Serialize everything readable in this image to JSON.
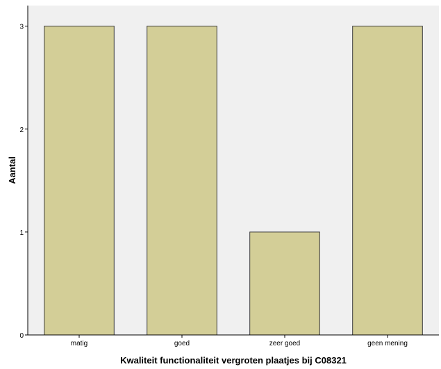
{
  "chart_data": {
    "type": "bar",
    "title": "",
    "xlabel": "Kwaliteit functionaliteit vergroten plaatjes bij C08321",
    "ylabel": "Aantal",
    "categories": [
      "matig",
      "goed",
      "zeer goed",
      "geen mening"
    ],
    "values": [
      3,
      3,
      1,
      3
    ],
    "ylim": [
      0,
      3.2
    ],
    "yticks": [
      "0",
      "1",
      "2",
      "3"
    ],
    "grid": false,
    "legend": "none",
    "colors": {
      "plot_background": "#f0f0f0",
      "bar_fill": "#d3ce97",
      "bar_stroke": "#3a3a3a",
      "axis": "#000000"
    }
  }
}
